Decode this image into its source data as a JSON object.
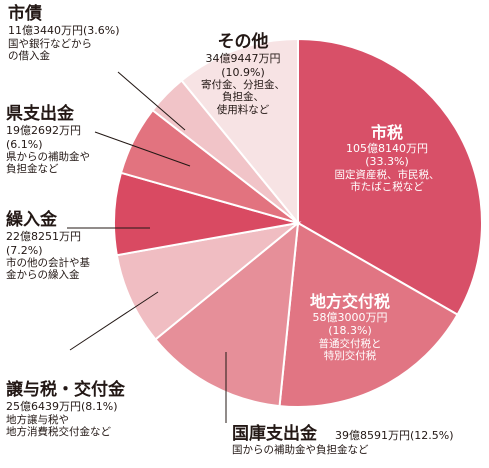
{
  "chart_data": {
    "type": "pie",
    "slices": [
      {
        "key": "shizei",
        "name": "市税",
        "amount": "105億8140万円",
        "percent_label": "(33.3%)",
        "desc": [
          "固定資産税、市民税、",
          "市たばこ税など"
        ],
        "value": 33.3,
        "color": "#d85068"
      },
      {
        "key": "chihou",
        "name": "地方交付税",
        "amount": "58億3000万円",
        "percent_label": "(18.3%)",
        "desc": [
          "普通交付税と",
          "特別交付税"
        ],
        "value": 18.3,
        "color": "#e17583"
      },
      {
        "key": "kokko",
        "name": "国庫支出金",
        "amount": "39億8591万円(12.5%)",
        "percent_label": "",
        "desc": [
          "国からの補助金や負担金など"
        ],
        "value": 12.5,
        "color": "#e68f99"
      },
      {
        "key": "jouyo",
        "name": "譲与税・交付金",
        "amount": "25億6439万円(8.1%)",
        "percent_label": "",
        "desc": [
          "地方譲与税や",
          "地方消費税交付金など"
        ],
        "value": 8.1,
        "color": "#f0bdc2"
      },
      {
        "key": "kurii",
        "name": "繰入金",
        "amount": "22億8251万円",
        "percent_label": "(7.2%)",
        "desc": [
          "市の他の会計や基",
          "金からの繰入金"
        ],
        "value": 7.2,
        "color": "#d94a62"
      },
      {
        "key": "ken",
        "name": "県支出金",
        "amount": "19億2692万円",
        "percent_label": "(6.1%)",
        "desc": [
          "県からの補助金や",
          "負担金など"
        ],
        "value": 6.1,
        "color": "#e2737f"
      },
      {
        "key": "shisai",
        "name": "市債",
        "amount": "11億3440万円(3.6%)",
        "percent_label": "",
        "desc": [
          "国や銀行などから",
          "の借入金"
        ],
        "value": 3.6,
        "color": "#f1c4c8"
      },
      {
        "key": "sonota",
        "name": "その他",
        "amount": "34億9447万円",
        "percent_label": "(10.9%)",
        "desc": [
          "寄付金、分担金、",
          "負担金、",
          "使用料など"
        ],
        "value": 10.9,
        "color": "#f7e3e4"
      }
    ]
  }
}
